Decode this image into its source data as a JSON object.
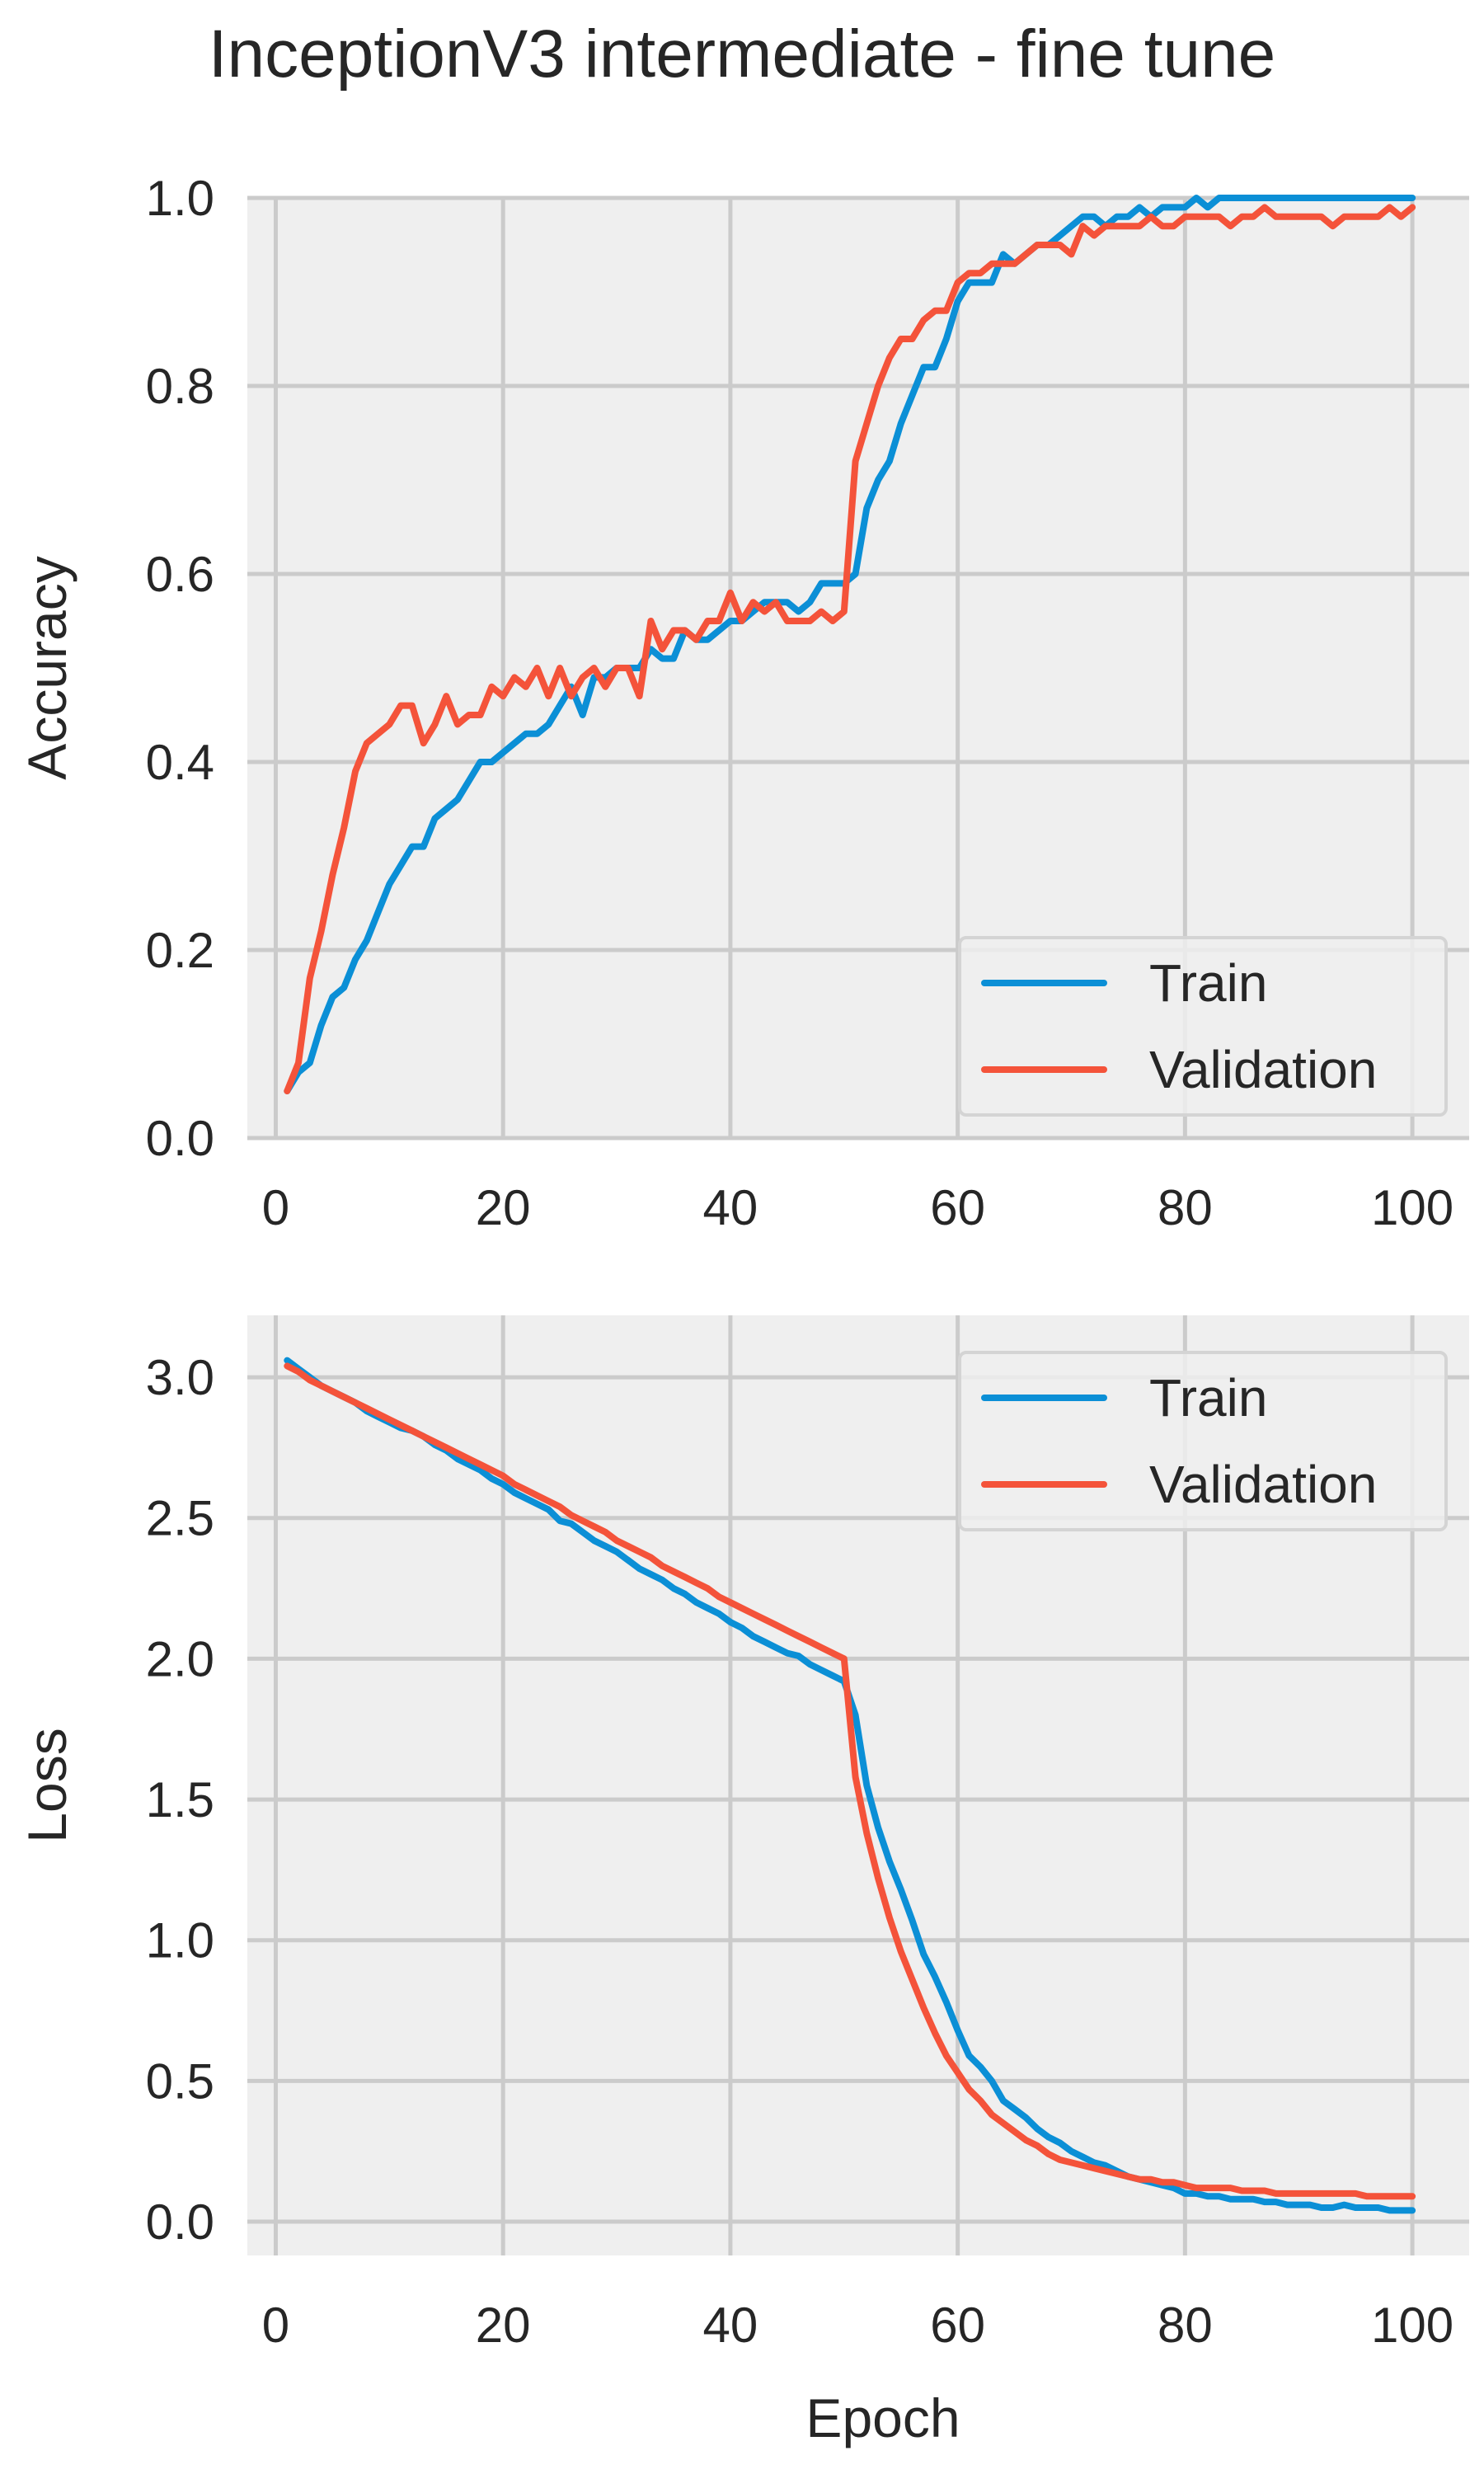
{
  "title": "InceptionV3 intermediate - fine tune",
  "colors": {
    "train": "#0b8fd6",
    "validation": "#f4533a",
    "plot_bg": "#efefef",
    "grid": "#cbcbcb"
  },
  "chart_data": [
    {
      "type": "line",
      "title": "InceptionV3 intermediate - fine tune",
      "xlabel": "",
      "ylabel": "Accuracy",
      "xlim": [
        -2.5,
        105
      ],
      "ylim": [
        0.0,
        1.0
      ],
      "xticks": [
        "0",
        "20",
        "40",
        "60",
        "80",
        "100"
      ],
      "yticks": [
        "0.0",
        "0.2",
        "0.4",
        "0.6",
        "0.8",
        "1.0"
      ],
      "grid": true,
      "legend": "lower right",
      "x": [
        1,
        2,
        3,
        4,
        5,
        6,
        7,
        8,
        9,
        10,
        11,
        12,
        13,
        14,
        15,
        16,
        17,
        18,
        19,
        20,
        21,
        22,
        23,
        24,
        25,
        26,
        27,
        28,
        29,
        30,
        31,
        32,
        33,
        34,
        35,
        36,
        37,
        38,
        39,
        40,
        41,
        42,
        43,
        44,
        45,
        46,
        47,
        48,
        49,
        50,
        51,
        52,
        53,
        54,
        55,
        56,
        57,
        58,
        59,
        60,
        61,
        62,
        63,
        64,
        65,
        66,
        67,
        68,
        69,
        70,
        71,
        72,
        73,
        74,
        75,
        76,
        77,
        78,
        79,
        80,
        81,
        82,
        83,
        84,
        85,
        86,
        87,
        88,
        89,
        90,
        91,
        92,
        93,
        94,
        95,
        96,
        97,
        98,
        99,
        100
      ],
      "series": [
        {
          "name": "Train",
          "color": "#0b8fd6",
          "values": [
            0.05,
            0.07,
            0.08,
            0.12,
            0.15,
            0.16,
            0.19,
            0.21,
            0.24,
            0.27,
            0.29,
            0.31,
            0.31,
            0.34,
            0.35,
            0.36,
            0.38,
            0.4,
            0.4,
            0.41,
            0.42,
            0.43,
            0.43,
            0.44,
            0.46,
            0.48,
            0.45,
            0.49,
            0.49,
            0.5,
            0.5,
            0.5,
            0.52,
            0.51,
            0.51,
            0.54,
            0.53,
            0.53,
            0.54,
            0.55,
            0.55,
            0.56,
            0.57,
            0.57,
            0.57,
            0.56,
            0.57,
            0.59,
            0.59,
            0.59,
            0.6,
            0.67,
            0.7,
            0.72,
            0.76,
            0.79,
            0.82,
            0.82,
            0.85,
            0.89,
            0.91,
            0.91,
            0.91,
            0.94,
            0.93,
            0.94,
            0.95,
            0.95,
            0.96,
            0.97,
            0.98,
            0.98,
            0.97,
            0.98,
            0.98,
            0.99,
            0.98,
            0.99,
            0.99,
            0.99,
            1.0,
            0.99,
            1.0,
            1.0,
            1.0,
            1.0,
            1.0,
            1.0,
            1.0,
            1.0,
            1.0,
            1.0,
            1.0,
            1.0,
            1.0,
            1.0,
            1.0,
            1.0,
            1.0,
            1.0
          ]
        },
        {
          "name": "Validation",
          "color": "#f4533a",
          "values": [
            0.05,
            0.08,
            0.17,
            0.22,
            0.28,
            0.33,
            0.39,
            0.42,
            0.43,
            0.44,
            0.46,
            0.46,
            0.42,
            0.44,
            0.47,
            0.44,
            0.45,
            0.45,
            0.48,
            0.47,
            0.49,
            0.48,
            0.5,
            0.47,
            0.5,
            0.47,
            0.49,
            0.5,
            0.48,
            0.5,
            0.5,
            0.47,
            0.55,
            0.52,
            0.54,
            0.54,
            0.53,
            0.55,
            0.55,
            0.58,
            0.55,
            0.57,
            0.56,
            0.57,
            0.55,
            0.55,
            0.55,
            0.56,
            0.55,
            0.56,
            0.72,
            0.76,
            0.8,
            0.83,
            0.85,
            0.85,
            0.87,
            0.88,
            0.88,
            0.91,
            0.92,
            0.92,
            0.93,
            0.93,
            0.93,
            0.94,
            0.95,
            0.95,
            0.95,
            0.94,
            0.97,
            0.96,
            0.97,
            0.97,
            0.97,
            0.97,
            0.98,
            0.97,
            0.97,
            0.98,
            0.98,
            0.98,
            0.98,
            0.97,
            0.98,
            0.98,
            0.99,
            0.98,
            0.98,
            0.98,
            0.98,
            0.98,
            0.97,
            0.98,
            0.98,
            0.98,
            0.98,
            0.99,
            0.98,
            0.99
          ]
        }
      ]
    },
    {
      "type": "line",
      "xlabel": "Epoch",
      "ylabel": "Loss",
      "xlim": [
        -2.5,
        105
      ],
      "ylim": [
        -0.12,
        3.22
      ],
      "xticks": [
        "0",
        "20",
        "40",
        "60",
        "80",
        "100"
      ],
      "yticks": [
        "0.0",
        "0.5",
        "1.0",
        "1.5",
        "2.0",
        "2.5",
        "3.0"
      ],
      "grid": true,
      "legend": "upper right",
      "x": [
        1,
        2,
        3,
        4,
        5,
        6,
        7,
        8,
        9,
        10,
        11,
        12,
        13,
        14,
        15,
        16,
        17,
        18,
        19,
        20,
        21,
        22,
        23,
        24,
        25,
        26,
        27,
        28,
        29,
        30,
        31,
        32,
        33,
        34,
        35,
        36,
        37,
        38,
        39,
        40,
        41,
        42,
        43,
        44,
        45,
        46,
        47,
        48,
        49,
        50,
        51,
        52,
        53,
        54,
        55,
        56,
        57,
        58,
        59,
        60,
        61,
        62,
        63,
        64,
        65,
        66,
        67,
        68,
        69,
        70,
        71,
        72,
        73,
        74,
        75,
        76,
        77,
        78,
        79,
        80,
        81,
        82,
        83,
        84,
        85,
        86,
        87,
        88,
        89,
        90,
        91,
        92,
        93,
        94,
        95,
        96,
        97,
        98,
        99,
        100
      ],
      "series": [
        {
          "name": "Train",
          "color": "#0b8fd6",
          "values": [
            3.06,
            3.03,
            3.0,
            2.97,
            2.95,
            2.93,
            2.91,
            2.88,
            2.86,
            2.84,
            2.82,
            2.81,
            2.79,
            2.76,
            2.74,
            2.71,
            2.69,
            2.67,
            2.64,
            2.62,
            2.59,
            2.57,
            2.55,
            2.53,
            2.49,
            2.48,
            2.45,
            2.42,
            2.4,
            2.38,
            2.35,
            2.32,
            2.3,
            2.28,
            2.25,
            2.23,
            2.2,
            2.18,
            2.16,
            2.13,
            2.11,
            2.08,
            2.06,
            2.04,
            2.02,
            2.01,
            1.98,
            1.96,
            1.94,
            1.92,
            1.8,
            1.55,
            1.4,
            1.28,
            1.18,
            1.07,
            0.95,
            0.87,
            0.78,
            0.68,
            0.59,
            0.55,
            0.5,
            0.43,
            0.4,
            0.37,
            0.33,
            0.3,
            0.28,
            0.25,
            0.23,
            0.21,
            0.2,
            0.18,
            0.16,
            0.15,
            0.14,
            0.13,
            0.12,
            0.1,
            0.1,
            0.09,
            0.09,
            0.08,
            0.08,
            0.08,
            0.07,
            0.07,
            0.06,
            0.06,
            0.06,
            0.05,
            0.05,
            0.06,
            0.05,
            0.05,
            0.05,
            0.04,
            0.04,
            0.04
          ]
        },
        {
          "name": "Validation",
          "color": "#f4533a",
          "values": [
            3.04,
            3.02,
            2.99,
            2.97,
            2.95,
            2.93,
            2.91,
            2.89,
            2.87,
            2.85,
            2.83,
            2.81,
            2.79,
            2.77,
            2.75,
            2.73,
            2.71,
            2.69,
            2.67,
            2.65,
            2.62,
            2.6,
            2.58,
            2.56,
            2.54,
            2.51,
            2.49,
            2.47,
            2.45,
            2.42,
            2.4,
            2.38,
            2.36,
            2.33,
            2.31,
            2.29,
            2.27,
            2.25,
            2.22,
            2.2,
            2.18,
            2.16,
            2.14,
            2.12,
            2.1,
            2.08,
            2.06,
            2.04,
            2.02,
            2.0,
            1.58,
            1.38,
            1.22,
            1.08,
            0.96,
            0.86,
            0.76,
            0.67,
            0.59,
            0.53,
            0.47,
            0.43,
            0.38,
            0.35,
            0.32,
            0.29,
            0.27,
            0.24,
            0.22,
            0.21,
            0.2,
            0.19,
            0.18,
            0.17,
            0.16,
            0.15,
            0.15,
            0.14,
            0.14,
            0.13,
            0.12,
            0.12,
            0.12,
            0.12,
            0.11,
            0.11,
            0.11,
            0.1,
            0.1,
            0.1,
            0.1,
            0.1,
            0.1,
            0.1,
            0.1,
            0.09,
            0.09,
            0.09,
            0.09,
            0.09
          ]
        }
      ]
    }
  ]
}
